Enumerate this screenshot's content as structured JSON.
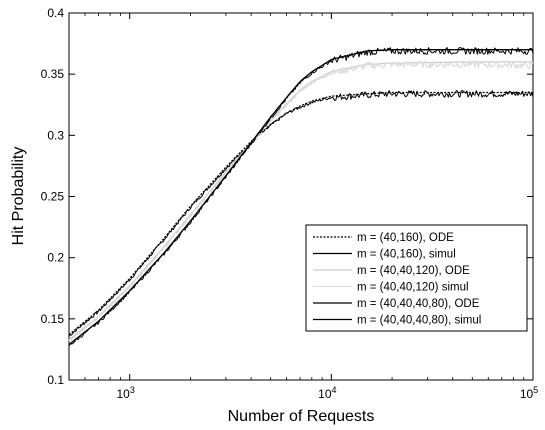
{
  "chart_data": {
    "type": "line",
    "xlabel": "Number of Requests",
    "ylabel": "Hit Probability",
    "xscale": "log",
    "xlim": [
      500,
      100000
    ],
    "ylim": [
      0.1,
      0.4
    ],
    "grid": false,
    "legend_position": "lower-right",
    "x_ticks": [
      1000,
      10000,
      100000
    ],
    "x_tick_labels": [
      {
        "base": "10",
        "exp": "3"
      },
      {
        "base": "10",
        "exp": "4"
      },
      {
        "base": "10",
        "exp": "5"
      }
    ],
    "y_ticks": [
      0.1,
      0.15,
      0.2,
      0.25,
      0.3,
      0.35,
      0.4
    ],
    "y_tick_labels": [
      "0.1",
      "0.15",
      "0.2",
      "0.25",
      "0.3",
      "0.35",
      "0.4"
    ],
    "series": [
      {
        "name": "m = (40,160), ODE",
        "color": "#000000",
        "dash": "dotted",
        "noisy": false,
        "x": [
          500,
          700,
          1000,
          1500,
          2000,
          3000,
          4000,
          5000,
          6000,
          7000,
          8000,
          10000,
          15000,
          20000,
          50000,
          100000
        ],
        "y": [
          0.137,
          0.157,
          0.183,
          0.217,
          0.242,
          0.274,
          0.295,
          0.309,
          0.318,
          0.324,
          0.328,
          0.332,
          0.334,
          0.335,
          0.335,
          0.335
        ]
      },
      {
        "name": "m = (40,160), simul",
        "color": "#000000",
        "dash": "solid-thin",
        "noisy": true,
        "x": [
          500,
          700,
          1000,
          1500,
          2000,
          3000,
          4000,
          5000,
          6000,
          7000,
          8000,
          10000,
          15000,
          20000,
          50000,
          100000
        ],
        "y": [
          0.136,
          0.156,
          0.182,
          0.216,
          0.241,
          0.273,
          0.294,
          0.308,
          0.318,
          0.323,
          0.327,
          0.331,
          0.333,
          0.334,
          0.334,
          0.334
        ]
      },
      {
        "name": "m = (40,40,120), ODE",
        "color": "#cccccc",
        "dash": "solid",
        "noisy": false,
        "x": [
          500,
          700,
          1000,
          1500,
          2000,
          3000,
          4000,
          5000,
          6000,
          7000,
          8000,
          10000,
          15000,
          20000,
          50000,
          100000
        ],
        "y": [
          0.133,
          0.152,
          0.177,
          0.21,
          0.235,
          0.27,
          0.294,
          0.312,
          0.326,
          0.337,
          0.344,
          0.352,
          0.358,
          0.359,
          0.36,
          0.36
        ]
      },
      {
        "name": "m = (40,40,120) simul",
        "color": "#dddddd",
        "dash": "solid",
        "noisy": true,
        "x": [
          500,
          700,
          1000,
          1500,
          2000,
          3000,
          4000,
          5000,
          6000,
          7000,
          8000,
          10000,
          15000,
          20000,
          50000,
          100000
        ],
        "y": [
          0.132,
          0.151,
          0.176,
          0.209,
          0.234,
          0.269,
          0.293,
          0.311,
          0.325,
          0.336,
          0.343,
          0.351,
          0.357,
          0.358,
          0.358,
          0.357
        ]
      },
      {
        "name": "m = (40,40,40,80), ODE",
        "color": "#000000",
        "dash": "solid",
        "noisy": false,
        "x": [
          500,
          700,
          1000,
          1500,
          2000,
          3000,
          4000,
          5000,
          6000,
          7000,
          8000,
          10000,
          15000,
          20000,
          50000,
          100000
        ],
        "y": [
          0.129,
          0.148,
          0.173,
          0.205,
          0.23,
          0.267,
          0.294,
          0.315,
          0.331,
          0.344,
          0.352,
          0.362,
          0.369,
          0.37,
          0.37,
          0.37
        ]
      },
      {
        "name": "m = (40,40,40,80), simul",
        "color": "#000000",
        "dash": "solid-thin",
        "noisy": true,
        "x": [
          500,
          700,
          1000,
          1500,
          2000,
          3000,
          4000,
          5000,
          6000,
          7000,
          8000,
          10000,
          15000,
          20000,
          50000,
          100000
        ],
        "y": [
          0.128,
          0.147,
          0.172,
          0.204,
          0.229,
          0.266,
          0.293,
          0.314,
          0.33,
          0.343,
          0.351,
          0.361,
          0.368,
          0.369,
          0.369,
          0.369
        ]
      }
    ]
  }
}
